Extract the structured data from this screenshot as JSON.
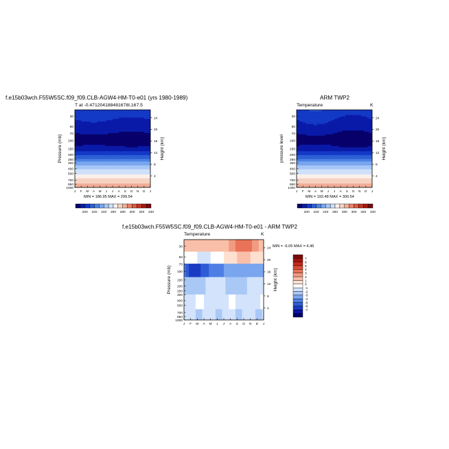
{
  "chart_data": [
    {
      "type": "heatmap",
      "title": "f.e15b03wch.F55W5SC.f09_f09.CLB-AGW4-HM-T0-e01 (yrs 1980-1989)",
      "subtitle": "T at -0.471204188481678I,167.5",
      "xlabel": "",
      "ylabel": "Pressure (mb)",
      "y2label": "Height (km)",
      "x_ticks": [
        "J",
        "F",
        "M",
        "A",
        "M",
        "J",
        "J",
        "A",
        "S",
        "O",
        "N",
        "D",
        "J"
      ],
      "y_ticks": [
        30,
        50,
        70,
        100,
        150,
        200,
        250,
        300,
        400,
        500,
        700,
        850,
        1000
      ],
      "y_tick_labels": [
        "30",
        "50",
        "70",
        "100",
        "150",
        "200",
        "250",
        "300",
        "400",
        "500",
        "700",
        "850",
        "1000"
      ],
      "y2_ticks": [
        4,
        8,
        12,
        16,
        20,
        24
      ],
      "y2_tick_labels": [
        "4",
        "8",
        "12",
        "16",
        "20",
        "24"
      ],
      "ylim": [
        1000,
        22
      ],
      "log_y": true,
      "min_max_label": "MIN = 186.95   MAX = 299.54",
      "z_min": 186.95,
      "z_max": 299.54,
      "colorbar_labels": [
        "200",
        "220",
        "240",
        "260",
        "280",
        "300",
        "320",
        "340"
      ]
    },
    {
      "type": "heatmap",
      "title": "ARM TWP2",
      "subtitle": "Temperature",
      "corner_label": "K",
      "xlabel": "",
      "ylabel": "pressure level",
      "y2label": "Height (km)",
      "x_ticks": [
        "J",
        "F",
        "M",
        "A",
        "M",
        "J",
        "J",
        "A",
        "S",
        "O",
        "N",
        "D",
        "J"
      ],
      "y_ticks": [
        30,
        50,
        70,
        100,
        150,
        200,
        250,
        300,
        400,
        500,
        700,
        850,
        1000
      ],
      "y_tick_labels": [
        "30",
        "50",
        "70",
        "100",
        "150",
        "200",
        "250",
        "300",
        "400",
        "500",
        "700",
        "850",
        "1000"
      ],
      "y2_ticks": [
        4,
        8,
        12,
        16,
        20,
        24
      ],
      "y2_tick_labels": [
        "4",
        "8",
        "12",
        "16",
        "20",
        "24"
      ],
      "ylim": [
        1000,
        22
      ],
      "log_y": true,
      "min_max_label": "MIN = 192.48   MAX = 300.54",
      "z_min": 192.48,
      "z_max": 300.54,
      "colorbar_labels": [
        "200",
        "220",
        "240",
        "260",
        "280",
        "300",
        "320",
        "340"
      ]
    },
    {
      "type": "heatmap",
      "title": "f.e15b03wch.F55W5SC.f09_f09.CLB-AGW4-HM-T0-e01 - ARM TWP2",
      "subtitle": "Temperature",
      "corner_label": "K",
      "xlabel": "",
      "ylabel": "Pressure (mb)",
      "y2label": "Height (km)",
      "x_ticks": [
        "J",
        "F",
        "M",
        "A",
        "M",
        "J",
        "J",
        "A",
        "S",
        "O",
        "N",
        "D",
        "J"
      ],
      "y_ticks": [
        30,
        50,
        70,
        100,
        150,
        200,
        250,
        300,
        400,
        500,
        700,
        850,
        1000
      ],
      "y_tick_labels": [
        "30",
        "50",
        "70",
        "100",
        "150",
        "200",
        "250",
        "300",
        "400",
        "500",
        "700",
        "850",
        "1000"
      ],
      "y2_ticks": [
        4,
        8,
        12,
        16,
        20,
        24
      ],
      "y2_tick_labels": [
        "4",
        "8",
        "12",
        "16",
        "20",
        "24"
      ],
      "ylim": [
        1000,
        22
      ],
      "log_y": true,
      "min_max_label": "MIN =  -6.05  MAX =    4.46",
      "z_min": -6.05,
      "z_max": 4.46,
      "colorbar_labels": [
        "7",
        "6",
        "5",
        "4",
        "3",
        "2",
        "1",
        "0",
        "-1",
        "-2",
        "-3",
        "-4",
        "-5",
        "-6",
        "-7"
      ]
    }
  ],
  "colors": {
    "abs_palette": [
      "#08006b",
      "#0a1aa8",
      "#1339c6",
      "#2d5fd6",
      "#4d82e4",
      "#79a6ee",
      "#a6c6f5",
      "#cfe0fa",
      "#fbf0ea",
      "#f6d2c2",
      "#f0ad97",
      "#e8826a",
      "#dc5a40",
      "#c53523",
      "#a51a14",
      "#7a0b0e"
    ],
    "diff_palette": [
      "#06006a",
      "#0b15a3",
      "#1a3ac4",
      "#2f5cd6",
      "#4f7fe4",
      "#7aa5ef",
      "#a9c8f6",
      "#d3e3fb",
      "#ffffff",
      "#fde0d0",
      "#f9bfa8",
      "#f29b80",
      "#e97358",
      "#db4c34",
      "#c5291c",
      "#a41510",
      "#7c0a0b"
    ]
  }
}
